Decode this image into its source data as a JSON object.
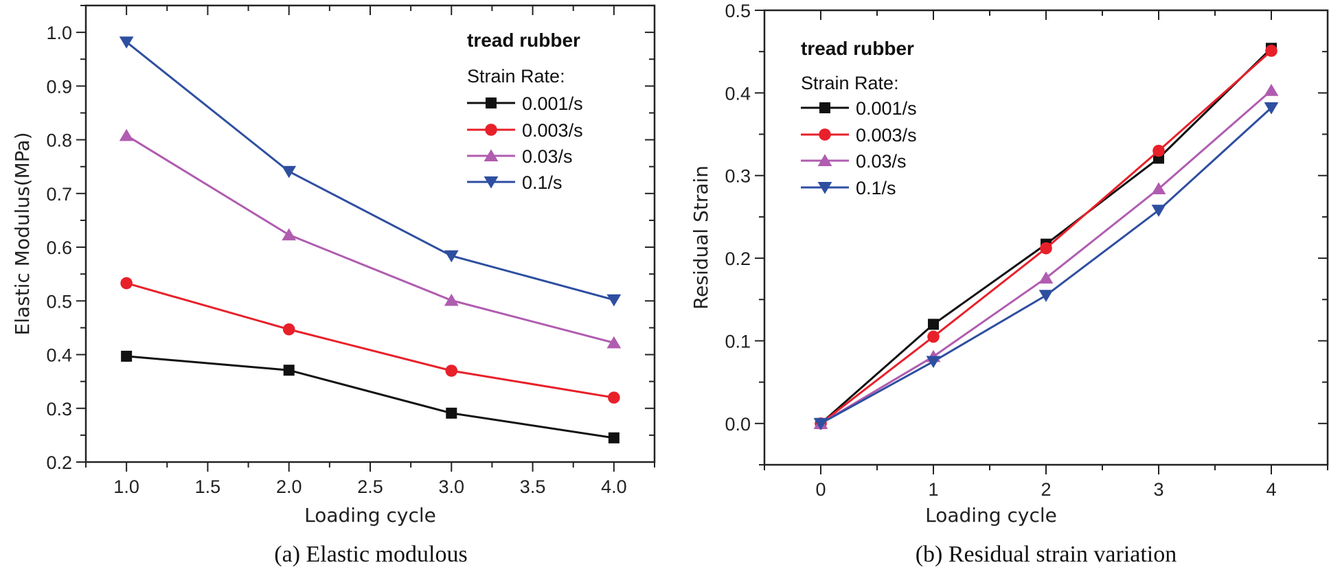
{
  "colors": {
    "0.001/s": "#111111",
    "0.003/s": "#e8202a",
    "0.03/s": "#b05cb0",
    "0.1/s": "#2e4fa0"
  },
  "chart_data": [
    {
      "type": "line",
      "caption": "(a) Elastic modulous",
      "xlabel": "Loading cycle",
      "ylabel": "Elastic Modulus(MPa)",
      "xlim": [
        0.75,
        4.25
      ],
      "ylim": [
        0.2,
        1.05
      ],
      "xticks": [
        "1.0",
        "1.5",
        "2.0",
        "2.5",
        "3.0",
        "3.5",
        "4.0"
      ],
      "yticks": [
        "0.2",
        "0.3",
        "0.4",
        "0.5",
        "0.6",
        "0.7",
        "0.8",
        "0.9",
        "1.0"
      ],
      "legend_title": "tread rubber",
      "legend_subtitle": "Strain Rate:",
      "legend_placement": "top-right",
      "grid": false,
      "x": [
        1,
        2,
        3,
        4
      ],
      "series": [
        {
          "name": "0.001/s",
          "marker": "square",
          "values": [
            0.397,
            0.371,
            0.291,
            0.245
          ]
        },
        {
          "name": "0.003/s",
          "marker": "circle",
          "values": [
            0.533,
            0.447,
            0.37,
            0.32
          ]
        },
        {
          "name": "0.03/s",
          "marker": "triangle-up",
          "values": [
            0.808,
            0.623,
            0.501,
            0.422
          ]
        },
        {
          "name": "0.1/s",
          "marker": "triangle-down",
          "values": [
            0.982,
            0.741,
            0.584,
            0.502
          ]
        }
      ]
    },
    {
      "type": "line",
      "caption": "(b) Residual strain variation",
      "xlabel": "Loading cycle",
      "ylabel": "Residual Strain",
      "xlim": [
        -0.5,
        4.5
      ],
      "ylim": [
        -0.05,
        0.5
      ],
      "xticks": [
        "0",
        "1",
        "2",
        "3",
        "4"
      ],
      "yticks": [
        "0.0",
        "0.1",
        "0.2",
        "0.3",
        "0.4",
        "0.5"
      ],
      "legend_title": "tread rubber",
      "legend_subtitle": "Strain Rate:",
      "legend_placement": "top-left",
      "grid": false,
      "x": [
        0,
        1,
        2,
        3,
        4
      ],
      "series": [
        {
          "name": "0.001/s",
          "marker": "square",
          "values": [
            0,
            0.12,
            0.217,
            0.321,
            0.454
          ]
        },
        {
          "name": "0.003/s",
          "marker": "circle",
          "values": [
            0,
            0.105,
            0.212,
            0.33,
            0.451
          ]
        },
        {
          "name": "0.03/s",
          "marker": "triangle-up",
          "values": [
            0,
            0.081,
            0.176,
            0.284,
            0.403
          ]
        },
        {
          "name": "0.1/s",
          "marker": "triangle-down",
          "values": [
            0,
            0.075,
            0.155,
            0.258,
            0.382
          ]
        }
      ]
    }
  ]
}
